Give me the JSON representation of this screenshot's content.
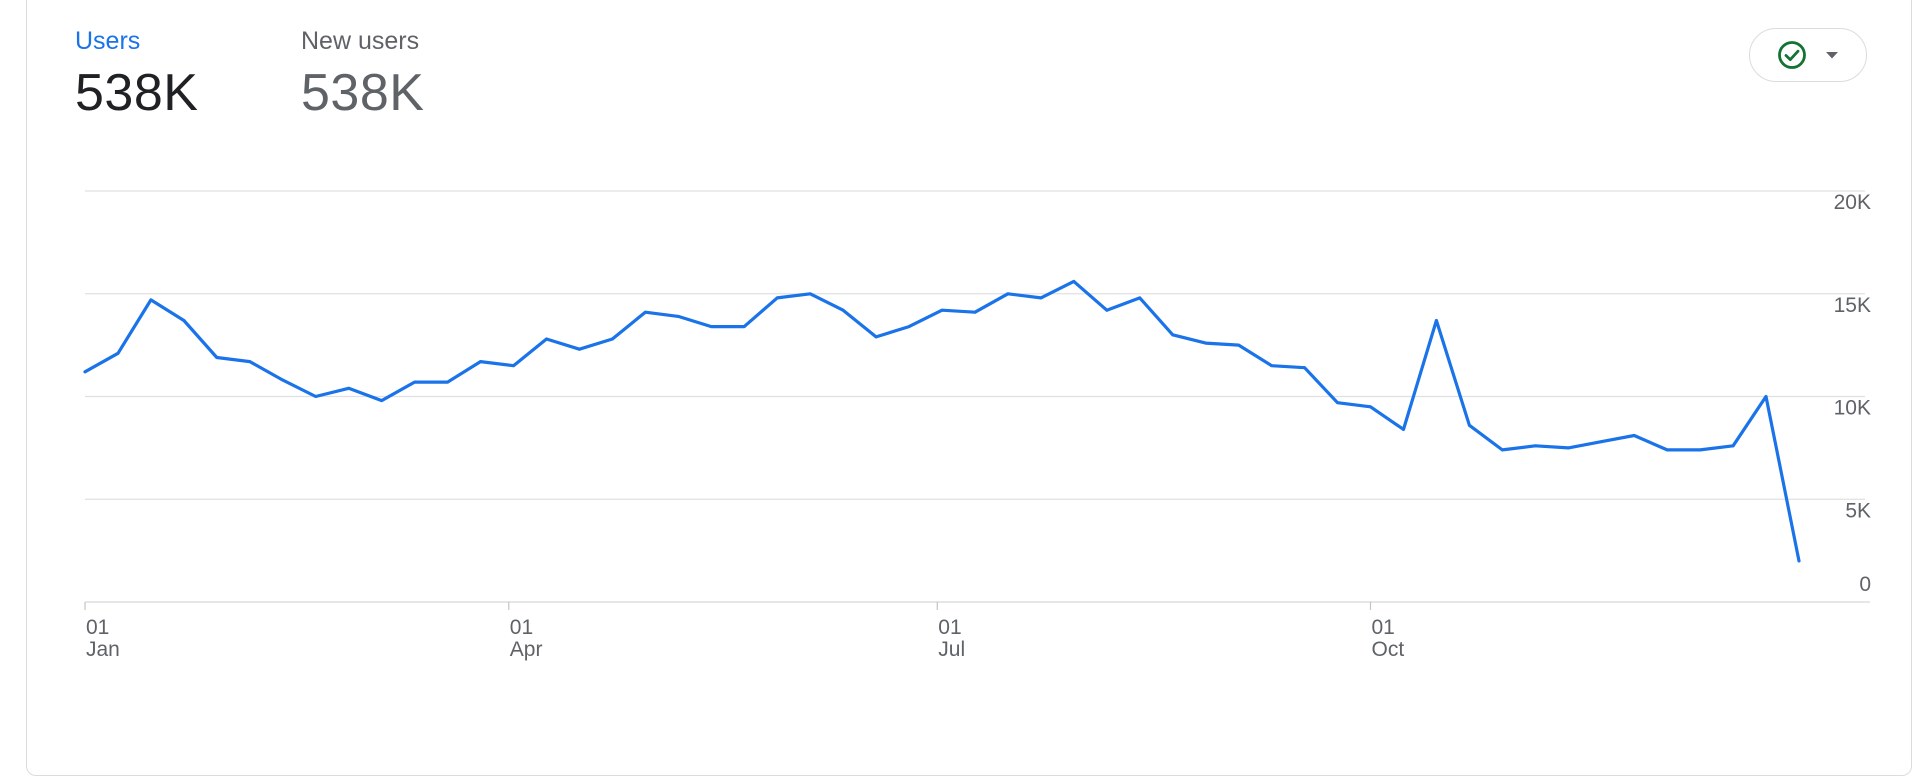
{
  "metrics": {
    "users": {
      "label": "Users",
      "value": "538K"
    },
    "new_users": {
      "label": "New users",
      "value": "538K"
    }
  },
  "status_button": {
    "icon": "check-circle-icon",
    "dropdown_icon": "caret-down-icon",
    "icon_color": "#137333"
  },
  "colors": {
    "line": "#1a73e8",
    "active_metric": "#1a73e8",
    "grid": "#e0e0e0"
  },
  "chart_data": {
    "type": "line",
    "title": "",
    "xlabel": "",
    "ylabel": "",
    "ylim": [
      0,
      20000
    ],
    "grid": true,
    "x_axis_labels": [
      {
        "day": "01",
        "month": "Jan"
      },
      {
        "day": "01",
        "month": "Apr"
      },
      {
        "day": "01",
        "month": "Jul"
      },
      {
        "day": "01",
        "month": "Oct"
      }
    ],
    "y_axis_labels": [
      "0",
      "5K",
      "10K",
      "15K",
      "20K"
    ],
    "series": [
      {
        "x": [
          "2023-01-01",
          "2023-01-08",
          "2023-01-15",
          "2023-01-22",
          "2023-01-29",
          "2023-02-05",
          "2023-02-12",
          "2023-02-19",
          "2023-02-26",
          "2023-03-05",
          "2023-03-12",
          "2023-03-19",
          "2023-03-26",
          "2023-04-02",
          "2023-04-09",
          "2023-04-16",
          "2023-04-23",
          "2023-04-30",
          "2023-05-07",
          "2023-05-14",
          "2023-05-21",
          "2023-05-28",
          "2023-06-04",
          "2023-06-11",
          "2023-06-18",
          "2023-06-25",
          "2023-07-02",
          "2023-07-09",
          "2023-07-16",
          "2023-07-23",
          "2023-07-30",
          "2023-08-06",
          "2023-08-13",
          "2023-08-20",
          "2023-08-27",
          "2023-09-03",
          "2023-09-10",
          "2023-09-17",
          "2023-09-24",
          "2023-10-01",
          "2023-10-08",
          "2023-10-15",
          "2023-10-22",
          "2023-10-29",
          "2023-11-05",
          "2023-11-12",
          "2023-11-19",
          "2023-11-26",
          "2023-12-03",
          "2023-12-10",
          "2023-12-17",
          "2023-12-24",
          "2023-12-31"
        ],
        "values": [
          11200,
          12100,
          14700,
          13700,
          11900,
          11700,
          10800,
          10000,
          10400,
          9800,
          10700,
          10700,
          11700,
          11500,
          12800,
          12300,
          12800,
          14100,
          13900,
          13400,
          13400,
          14800,
          15000,
          14200,
          12900,
          13400,
          14200,
          14100,
          15000,
          14800,
          15600,
          14200,
          14800,
          13000,
          12600,
          12500,
          11500,
          11400,
          9700,
          9500,
          8400,
          13700,
          8600,
          7400,
          7600,
          7500,
          7800,
          8100,
          7400,
          7400,
          7600,
          10000,
          2000
        ]
      }
    ]
  }
}
